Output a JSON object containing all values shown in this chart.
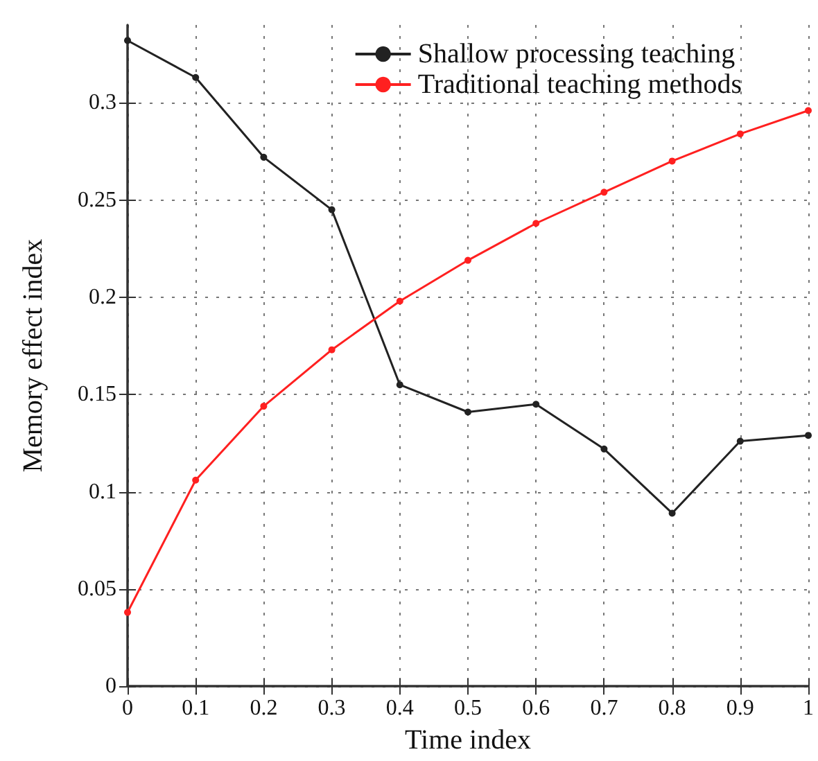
{
  "chart_data": {
    "type": "line",
    "xlabel": "Time index",
    "ylabel": "Memory effect index",
    "x": [
      0,
      0.1,
      0.2,
      0.3,
      0.4,
      0.5,
      0.6,
      0.7,
      0.8,
      0.9,
      1
    ],
    "series": [
      {
        "name": "Shallow processing teaching",
        "color": "#222222",
        "values": [
          0.332,
          0.313,
          0.272,
          0.245,
          0.155,
          0.141,
          0.145,
          0.122,
          0.089,
          0.126,
          0.129
        ]
      },
      {
        "name": "Traditional teaching methods",
        "color": "#ff2020",
        "values": [
          0.038,
          0.106,
          0.144,
          0.173,
          0.198,
          0.219,
          0.238,
          0.254,
          0.27,
          0.284,
          0.296
        ]
      }
    ],
    "xlim": [
      0,
      1
    ],
    "xticks": [
      0,
      0.1,
      0.2,
      0.3,
      0.4,
      0.5,
      0.6,
      0.7,
      0.8,
      0.9,
      1
    ],
    "ylim": [
      0,
      0.34
    ],
    "yticks": [
      0,
      0.05,
      0.1,
      0.15,
      0.2,
      0.25,
      0.3
    ],
    "grid": true,
    "legend": "top right",
    "marker": "circle",
    "line_style": "solid"
  }
}
